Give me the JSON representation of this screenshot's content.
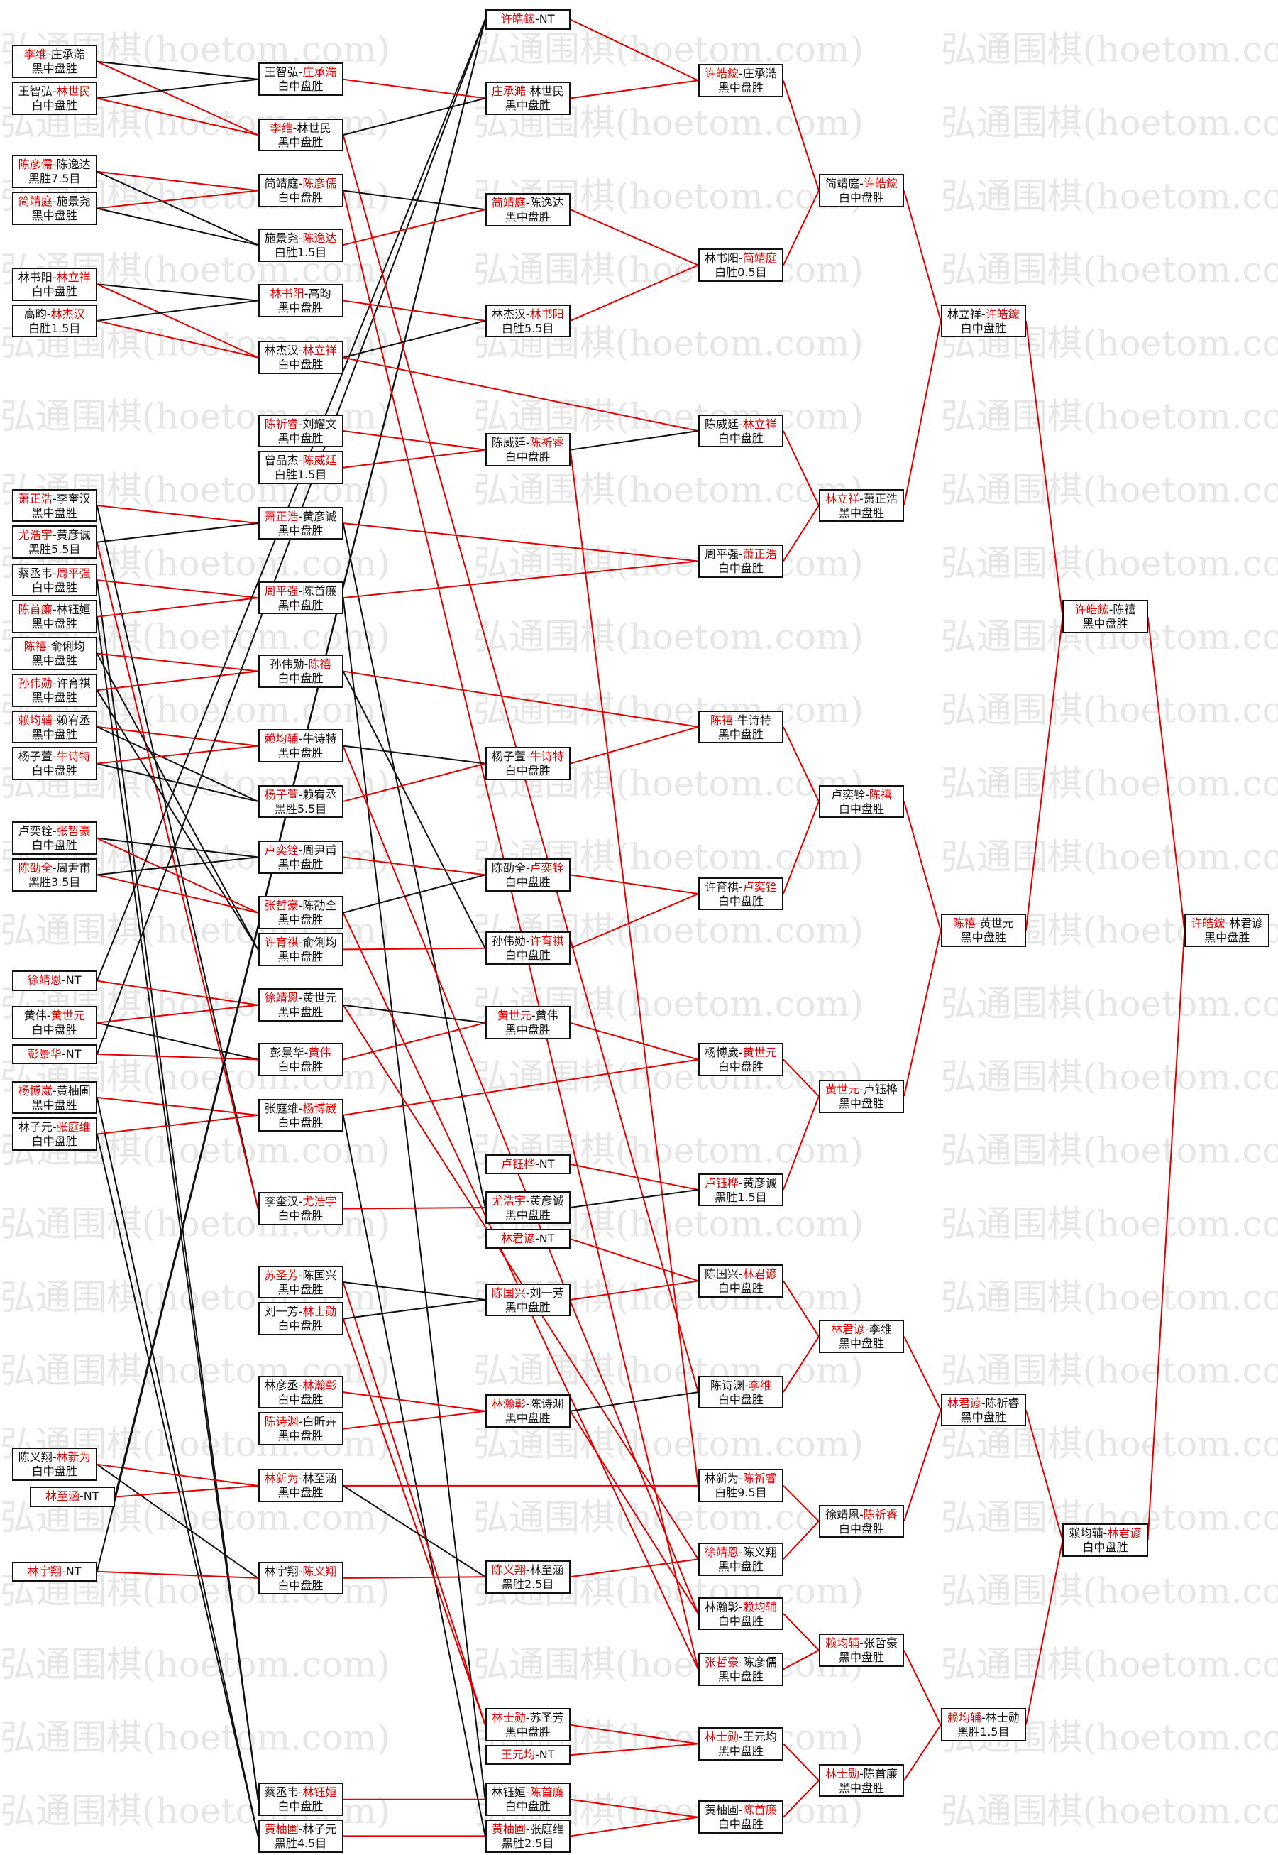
{
  "watermark": "弘通围棋(hoetom.com)",
  "separator": "-",
  "columns": [
    [
      {
        "a": "李维",
        "b": "庄承澔",
        "result": "黑中盘胜",
        "winner": "a"
      },
      {
        "a": "王智弘",
        "b": "林世民",
        "result": "白中盘胜",
        "winner": "b"
      },
      {
        "a": "陈彦儒",
        "b": "陈逸达",
        "result": "黑胜7.5目",
        "winner": "a"
      },
      {
        "a": "简靖庭",
        "b": "施景尧",
        "result": "黑中盘胜",
        "winner": "a"
      },
      {
        "a": "林书阳",
        "b": "林立祥",
        "result": "白中盘胜",
        "winner": "b"
      },
      {
        "a": "高昀",
        "b": "林杰汉",
        "result": "白胜1.5目",
        "winner": "b"
      },
      {
        "a": "萧正浩",
        "b": "李奎汉",
        "result": "黑中盘胜",
        "winner": "a"
      },
      {
        "a": "尤浩宇",
        "b": "黄彦诚",
        "result": "黑胜5.5目",
        "winner": "a"
      },
      {
        "a": "蔡丞韦",
        "b": "周平强",
        "result": "白中盘胜",
        "winner": "b"
      },
      {
        "a": "陈首廉",
        "b": "林钰姮",
        "result": "黑中盘胜",
        "winner": "a"
      },
      {
        "a": "陈禧",
        "b": "俞俐均",
        "result": "黑中盘胜",
        "winner": "a"
      },
      {
        "a": "孙伟勋",
        "b": "许育祺",
        "result": "黑中盘胜",
        "winner": "a"
      },
      {
        "a": "赖均辅",
        "b": "赖宥丞",
        "result": "黑中盘胜",
        "winner": "a"
      },
      {
        "a": "杨子萱",
        "b": "牛诗特",
        "result": "白中盘胜",
        "winner": "b"
      },
      {
        "a": "卢奕铨",
        "b": "张哲豪",
        "result": "白中盘胜",
        "winner": "b"
      },
      {
        "a": "陈劭全",
        "b": "周尹甫",
        "result": "黑胜3.5目",
        "winner": "a"
      },
      {
        "a": "徐靖恩",
        "b": "NT",
        "winner": "a"
      },
      {
        "a": "黄伟",
        "b": "黄世元",
        "result": "白中盘胜",
        "winner": "b"
      },
      {
        "a": "彭景华",
        "b": "NT",
        "winner": "a"
      },
      {
        "a": "杨博崴",
        "b": "黄柚圃",
        "result": "黑中盘胜",
        "winner": "a"
      },
      {
        "a": "林子元",
        "b": "张庭维",
        "result": "白中盘胜",
        "winner": "b"
      },
      {
        "a": "陈义翔",
        "b": "林新为",
        "result": "白中盘胜",
        "winner": "b"
      },
      {
        "a": "林至涵",
        "b": "NT",
        "winner": "a"
      },
      {
        "a": "林宇翔",
        "b": "NT",
        "winner": "a"
      }
    ],
    [
      {
        "a": "王智弘",
        "b": "庄承澔",
        "result": "白中盘胜",
        "winner": "b"
      },
      {
        "a": "李维",
        "b": "林世民",
        "result": "黑中盘胜",
        "winner": "a"
      },
      {
        "a": "简靖庭",
        "b": "陈彦儒",
        "result": "白中盘胜",
        "winner": "b"
      },
      {
        "a": "施景尧",
        "b": "陈逸达",
        "result": "白胜1.5目",
        "winner": "b"
      },
      {
        "a": "林书阳",
        "b": "高昀",
        "result": "黑中盘胜",
        "winner": "a"
      },
      {
        "a": "林杰汉",
        "b": "林立祥",
        "result": "白中盘胜",
        "winner": "b"
      },
      {
        "a": "陈祈睿",
        "b": "刘耀文",
        "result": "黑中盘胜",
        "winner": "a"
      },
      {
        "a": "曾品杰",
        "b": "陈威廷",
        "result": "白胜1.5目",
        "winner": "b"
      },
      {
        "a": "萧正浩",
        "b": "黄彦诚",
        "result": "黑中盘胜",
        "winner": "a"
      },
      {
        "a": "周平强",
        "b": "陈首廉",
        "result": "黑中盘胜",
        "winner": "a"
      },
      {
        "a": "孙伟勋",
        "b": "陈禧",
        "result": "白中盘胜",
        "winner": "b"
      },
      {
        "a": "赖均辅",
        "b": "牛诗特",
        "result": "黑中盘胜",
        "winner": "a"
      },
      {
        "a": "杨子萱",
        "b": "赖宥丞",
        "result": "黑胜5.5目",
        "winner": "a"
      },
      {
        "a": "卢奕铨",
        "b": "周尹甫",
        "result": "黑中盘胜",
        "winner": "a"
      },
      {
        "a": "张哲豪",
        "b": "陈劭全",
        "result": "黑中盘胜",
        "winner": "a"
      },
      {
        "a": "许育祺",
        "b": "俞俐均",
        "result": "黑中盘胜",
        "winner": "a"
      },
      {
        "a": "徐靖恩",
        "b": "黄世元",
        "result": "黑中盘胜",
        "winner": "a"
      },
      {
        "a": "彭景华",
        "b": "黄伟",
        "result": "白中盘胜",
        "winner": "b"
      },
      {
        "a": "张庭维",
        "b": "杨博崴",
        "result": "白中盘胜",
        "winner": "b"
      },
      {
        "a": "李奎汉",
        "b": "尤浩宇",
        "result": "白中盘胜",
        "winner": "b"
      },
      {
        "a": "苏圣芳",
        "b": "陈国兴",
        "result": "黑中盘胜",
        "winner": "a"
      },
      {
        "a": "刘一芳",
        "b": "林士勋",
        "result": "白中盘胜",
        "winner": "b"
      },
      {
        "a": "林彦丞",
        "b": "林瀚彰",
        "result": "白中盘胜",
        "winner": "b"
      },
      {
        "a": "陈诗渊",
        "b": "白昕卉",
        "result": "黑中盘胜",
        "winner": "a"
      },
      {
        "a": "林新为",
        "b": "林至涵",
        "result": "黑中盘胜",
        "winner": "a"
      },
      {
        "a": "林宇翔",
        "b": "陈义翔",
        "result": "白中盘胜",
        "winner": "b"
      },
      {
        "a": "蔡丞韦",
        "b": "林钰姮",
        "result": "白中盘胜",
        "winner": "b"
      },
      {
        "a": "黄柚圃",
        "b": "林子元",
        "result": "黑胜4.5目",
        "winner": "a"
      }
    ],
    [
      {
        "a": "许皓鋐",
        "b": "NT",
        "winner": "a"
      },
      {
        "a": "庄承澔",
        "b": "林世民",
        "result": "黑中盘胜",
        "winner": "a"
      },
      {
        "a": "简靖庭",
        "b": "陈逸达",
        "result": "黑中盘胜",
        "winner": "a"
      },
      {
        "a": "林杰汉",
        "b": "林书阳",
        "result": "白胜5.5目",
        "winner": "b"
      },
      {
        "a": "陈威廷",
        "b": "陈祈睿",
        "result": "白中盘胜",
        "winner": "b"
      },
      {
        "a": "杨子萱",
        "b": "牛诗特",
        "result": "白中盘胜",
        "winner": "b"
      },
      {
        "a": "陈劭全",
        "b": "卢奕铨",
        "result": "白中盘胜",
        "winner": "b"
      },
      {
        "a": "孙伟勋",
        "b": "许育祺",
        "result": "白中盘胜",
        "winner": "b"
      },
      {
        "a": "黄世元",
        "b": "黄伟",
        "result": "黑中盘胜",
        "winner": "a"
      },
      {
        "a": "卢钰桦",
        "b": "NT",
        "winner": "a"
      },
      {
        "a": "尤浩宇",
        "b": "黄彦诚",
        "result": "黑中盘胜",
        "winner": "a"
      },
      {
        "a": "林君谚",
        "b": "NT",
        "winner": "a"
      },
      {
        "a": "陈国兴",
        "b": "刘一芳",
        "result": "黑中盘胜",
        "winner": "a"
      },
      {
        "a": "林瀚彰",
        "b": "陈诗渊",
        "result": "黑中盘胜",
        "winner": "a"
      },
      {
        "a": "陈义翔",
        "b": "林至涵",
        "result": "黑胜2.5目",
        "winner": "a"
      },
      {
        "a": "林士勋",
        "b": "苏圣芳",
        "result": "黑中盘胜",
        "winner": "a"
      },
      {
        "a": "王元均",
        "b": "NT",
        "winner": "a"
      },
      {
        "a": "林钰姮",
        "b": "陈首廉",
        "result": "白中盘胜",
        "winner": "b"
      },
      {
        "a": "黄柚圃",
        "b": "张庭维",
        "result": "黑胜2.5目",
        "winner": "a"
      }
    ],
    [
      {
        "a": "许皓鋐",
        "b": "庄承澔",
        "result": "黑中盘胜",
        "winner": "a"
      },
      {
        "a": "林书阳",
        "b": "简靖庭",
        "result": "白胜0.5目",
        "winner": "b"
      },
      {
        "a": "陈威廷",
        "b": "林立祥",
        "result": "白中盘胜",
        "winner": "b"
      },
      {
        "a": "周平强",
        "b": "萧正浩",
        "result": "白中盘胜",
        "winner": "b"
      },
      {
        "a": "陈禧",
        "b": "牛诗特",
        "result": "黑中盘胜",
        "winner": "a"
      },
      {
        "a": "许育祺",
        "b": "卢奕铨",
        "result": "白中盘胜",
        "winner": "b"
      },
      {
        "a": "杨博崴",
        "b": "黄世元",
        "result": "白中盘胜",
        "winner": "b"
      },
      {
        "a": "卢钰桦",
        "b": "黄彦诚",
        "result": "黑胜1.5目",
        "winner": "a"
      },
      {
        "a": "陈国兴",
        "b": "林君谚",
        "result": "白中盘胜",
        "winner": "b"
      },
      {
        "a": "陈诗渊",
        "b": "李维",
        "result": "白中盘胜",
        "winner": "b"
      },
      {
        "a": "林新为",
        "b": "陈祈睿",
        "result": "白胜9.5目",
        "winner": "b"
      },
      {
        "a": "徐靖恩",
        "b": "陈义翔",
        "result": "黑中盘胜",
        "winner": "a"
      },
      {
        "a": "林瀚彰",
        "b": "赖均辅",
        "result": "白中盘胜",
        "winner": "b"
      },
      {
        "a": "张哲豪",
        "b": "陈彦儒",
        "result": "黑中盘胜",
        "winner": "a"
      },
      {
        "a": "林士勋",
        "b": "王元均",
        "result": "黑中盘胜",
        "winner": "a"
      },
      {
        "a": "黄柚圃",
        "b": "陈首廉",
        "result": "白中盘胜",
        "winner": "b"
      }
    ],
    [
      {
        "a": "简靖庭",
        "b": "许皓鋐",
        "result": "白中盘胜",
        "winner": "b"
      },
      {
        "a": "林立祥",
        "b": "萧正浩",
        "result": "黑中盘胜",
        "winner": "a"
      },
      {
        "a": "卢奕铨",
        "b": "陈禧",
        "result": "白中盘胜",
        "winner": "b"
      },
      {
        "a": "黄世元",
        "b": "卢钰桦",
        "result": "黑中盘胜",
        "winner": "a"
      },
      {
        "a": "林君谚",
        "b": "李维",
        "result": "黑中盘胜",
        "winner": "a"
      },
      {
        "a": "徐靖恩",
        "b": "陈祈睿",
        "result": "白中盘胜",
        "winner": "b"
      },
      {
        "a": "赖均辅",
        "b": "张哲豪",
        "result": "黑中盘胜",
        "winner": "a"
      },
      {
        "a": "林士勋",
        "b": "陈首廉",
        "result": "黑中盘胜",
        "winner": "a"
      }
    ],
    [
      {
        "a": "林立祥",
        "b": "许皓鋐",
        "result": "白中盘胜",
        "winner": "b"
      },
      {
        "a": "陈禧",
        "b": "黄世元",
        "result": "黑中盘胜",
        "winner": "a"
      },
      {
        "a": "林君谚",
        "b": "陈祈睿",
        "result": "黑中盘胜",
        "winner": "a"
      },
      {
        "a": "赖均辅",
        "b": "林士勋",
        "result": "黑胜1.5目",
        "winner": "a"
      }
    ],
    [
      {
        "a": "许皓鋐",
        "b": "陈禧",
        "result": "黑中盘胜",
        "winner": "a"
      },
      {
        "a": "赖均辅",
        "b": "林君谚",
        "result": "白中盘胜",
        "winner": "b"
      }
    ],
    [
      {
        "a": "许皓鋐",
        "b": "林君谚",
        "result": "黑中盘胜",
        "winner": "a"
      }
    ]
  ]
}
